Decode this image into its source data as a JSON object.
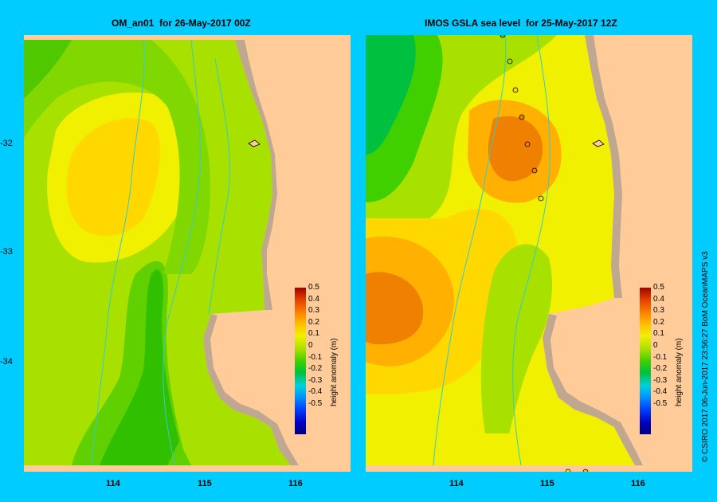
{
  "left_panel": {
    "title": "OM_an01  for 26-May-2017 00Z"
  },
  "right_panel": {
    "title": "IMOS GSLA sea level  for 25-May-2017 12Z"
  },
  "y_ticks": [
    "-32",
    "-33",
    "-34"
  ],
  "x_ticks": [
    "114",
    "115",
    "116"
  ],
  "colorbar": {
    "label": "height anomaly (m)",
    "ticks": [
      "0.5",
      "0.4",
      "0.3",
      "0.2",
      "0.1",
      "0",
      "-0.1",
      "-0.2",
      "-0.3",
      "-0.4",
      "-0.5"
    ],
    "colors": [
      "#000080",
      "#0000c0",
      "#0040ff",
      "#0090ff",
      "#00d0e0",
      "#00c040",
      "#40d000",
      "#a8e000",
      "#f0f000",
      "#ffc000",
      "#ff8000",
      "#e04000",
      "#a00000"
    ]
  },
  "credit": "© CSIRO 2017   06-Jun-2017 23:56:27 BoM OceanMAPS v3",
  "colors": {
    "background": "#00ccff",
    "land": "#ffcc99",
    "shelf": "#c0a890",
    "bathymetry": "#33cccc"
  }
}
